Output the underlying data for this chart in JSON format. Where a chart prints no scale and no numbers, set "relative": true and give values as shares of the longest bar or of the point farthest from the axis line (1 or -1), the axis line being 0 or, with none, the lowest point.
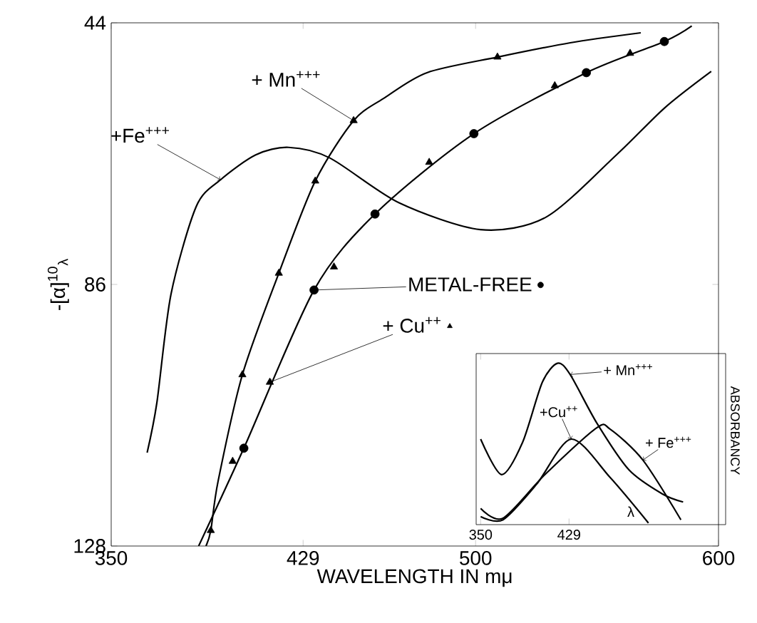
{
  "chart_data": [
    {
      "type": "line",
      "xlabel": "WAVELENGTH IN mμ",
      "ylabel": "-[α]$^{10}$$_{λ}$",
      "xlim": [
        350,
        600
      ],
      "xticks": [
        350,
        429,
        500,
        600
      ],
      "ylim": [
        128,
        44
      ],
      "yticks": [
        44,
        86,
        128
      ],
      "grid": false,
      "legend": "right",
      "series": [
        {
          "name": "+ Mn$^{+++}$",
          "color": "#000000",
          "type": "line",
          "x": [
            389,
            391,
            394,
            404,
            419,
            434,
            449.8,
            462.7,
            480,
            509,
            539,
            568
          ],
          "values": [
            128,
            125.5,
            117.6,
            100.5,
            84.2,
            69.4,
            59.7,
            56,
            52,
            49.5,
            47.2,
            45.6
          ]
        },
        {
          "name": "+Fe$^{+++}$",
          "color": "#000000",
          "type": "line",
          "x": [
            364.8,
            368.8,
            374.6,
            385,
            395,
            409.5,
            423,
            440,
            468.5,
            502,
            529,
            558,
            578,
            597
          ],
          "values": [
            113,
            105,
            87.6,
            73.5,
            69.2,
            65.2,
            64,
            65.7,
            72.9,
            77.2,
            75.2,
            65.2,
            57.6,
            51.8
          ]
        },
        {
          "color": "#000000",
          "type": "line",
          "x": [
            386,
            404.6,
            433.5,
            458.6,
            499.3,
            545.6,
            577.7,
            589
          ],
          "values": [
            128,
            112.3,
            86.9,
            74.7,
            61.8,
            52,
            47,
            44.5
          ]
        },
        {
          "color": "#000000",
          "type": "scatter",
          "marker": "triangle",
          "x": [
            391,
            404,
            419,
            434,
            449.8,
            509
          ],
          "values": [
            125.5,
            100.5,
            84.2,
            69.4,
            59.7,
            49.5
          ]
        },
        {
          "name": "METAL-FREE",
          "color": "#000000",
          "type": "scatter",
          "marker": "circle",
          "x": [
            404.6,
            433.5,
            458.6,
            499.3,
            545.6,
            577.7
          ],
          "values": [
            112.3,
            86.9,
            74.7,
            61.8,
            52,
            47
          ]
        },
        {
          "name": "+ Cu$^{++}$",
          "color": "#000000",
          "type": "scatter",
          "marker": "triangle",
          "x": [
            400,
            415.3,
            441.7,
            480.9,
            532.6,
            563.6
          ],
          "values": [
            114.4,
            101.7,
            83.2,
            66.4,
            54.1,
            48.9
          ]
        }
      ]
    },
    {
      "type": "line",
      "relative": true,
      "xlabel": "λ",
      "ylabel": "ABSORBANCY",
      "xlim": [
        346,
        569
      ],
      "xticks": [
        350,
        429
      ],
      "grid": false,
      "series": [
        {
          "name": "+ Mn$^{+++}$",
          "color": "#000000",
          "x": [
            350,
            368.8,
            387.5,
            405,
            418.7,
            430,
            453.8,
            482.5,
            512.5,
            531
          ],
          "values": [
            0.53,
            0.31,
            0.51,
            0.88,
            1,
            0.93,
            0.63,
            0.34,
            0.19,
            0.14
          ]
        },
        {
          "name": "+Cu$^{++}$",
          "color": "#000000",
          "x": [
            350,
            370,
            400,
            431,
            466,
            500
          ],
          "values": [
            0.05,
            0.03,
            0.25,
            0.53,
            0.29,
            0.01
          ]
        },
        {
          "name": "+ Fe$^{+++}$",
          "color": "#000000",
          "x": [
            350,
            370,
            407.5,
            453.8,
            466,
            495,
            529
          ],
          "values": [
            0.1,
            0.04,
            0.31,
            0.6,
            0.59,
            0.4,
            0.03
          ]
        }
      ]
    }
  ]
}
